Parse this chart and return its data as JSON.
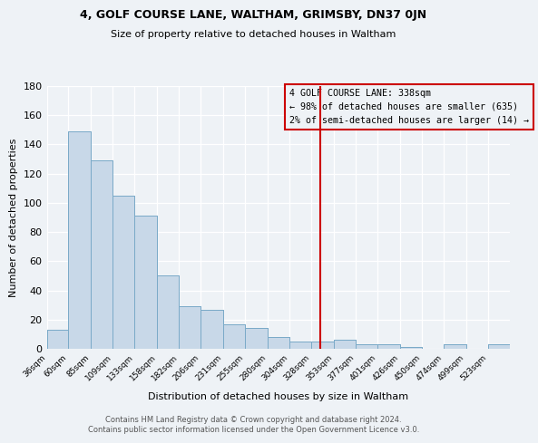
{
  "title": "4, GOLF COURSE LANE, WALTHAM, GRIMSBY, DN37 0JN",
  "subtitle": "Size of property relative to detached houses in Waltham",
  "xlabel": "Distribution of detached houses by size in Waltham",
  "ylabel": "Number of detached properties",
  "bin_labels": [
    "36sqm",
    "60sqm",
    "85sqm",
    "109sqm",
    "133sqm",
    "158sqm",
    "182sqm",
    "206sqm",
    "231sqm",
    "255sqm",
    "280sqm",
    "304sqm",
    "328sqm",
    "353sqm",
    "377sqm",
    "401sqm",
    "426sqm",
    "450sqm",
    "474sqm",
    "499sqm",
    "523sqm"
  ],
  "bin_edges": [
    36,
    60,
    85,
    109,
    133,
    158,
    182,
    206,
    231,
    255,
    280,
    304,
    328,
    353,
    377,
    401,
    426,
    450,
    474,
    499,
    523,
    547
  ],
  "bar_heights": [
    13,
    149,
    129,
    105,
    91,
    50,
    29,
    27,
    17,
    14,
    8,
    5,
    5,
    6,
    3,
    3,
    1,
    0,
    3,
    0,
    3
  ],
  "bar_color": "#c8d8e8",
  "bar_edgecolor": "#7aaac8",
  "vline_x": 338,
  "vline_color": "#cc0000",
  "annotation_title": "4 GOLF COURSE LANE: 338sqm",
  "annotation_line1": "← 98% of detached houses are smaller (635)",
  "annotation_line2": "2% of semi-detached houses are larger (14) →",
  "annotation_box_edgecolor": "#cc0000",
  "ylim": [
    0,
    180
  ],
  "yticks": [
    0,
    20,
    40,
    60,
    80,
    100,
    120,
    140,
    160,
    180
  ],
  "footer1": "Contains HM Land Registry data © Crown copyright and database right 2024.",
  "footer2": "Contains public sector information licensed under the Open Government Licence v3.0.",
  "background_color": "#eef2f6",
  "grid_color": "#ffffff"
}
